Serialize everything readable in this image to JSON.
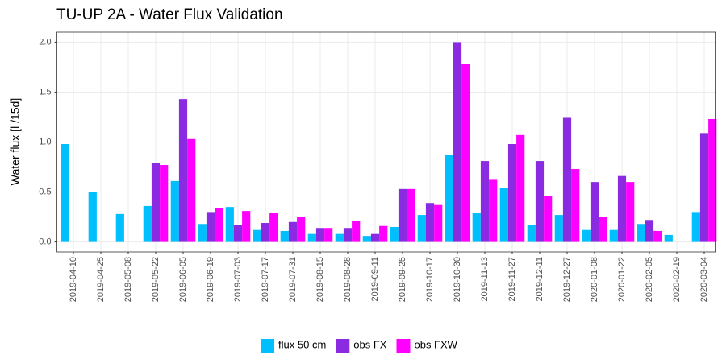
{
  "chart_data": {
    "type": "bar",
    "title": "TU-UP 2A - Water Flux Validation",
    "y_label": "Water flux [l /15d]",
    "categories": [
      "2019-04-10",
      "2019-04-25",
      "2019-05-08",
      "2019-05-22",
      "2019-06-05",
      "2019-06-19",
      "2019-07-03",
      "2019-07-17",
      "2019-07-31",
      "2019-08-15",
      "2019-08-28",
      "2019-09-11",
      "2019-09-25",
      "2019-10-17",
      "2019-10-30",
      "2019-11-13",
      "2019-11-27",
      "2019-12-11",
      "2019-12-27",
      "2020-01-08",
      "2020-01-22",
      "2020-02-05",
      "2020-02-19",
      "2020-03-04"
    ],
    "series": [
      {
        "name": "flux 50 cm",
        "color": "#00bfff",
        "values": [
          0.98,
          0.5,
          0.28,
          0.36,
          0.61,
          0.18,
          0.35,
          0.12,
          0.11,
          0.08,
          0.08,
          0.06,
          0.15,
          0.27,
          0.87,
          0.29,
          0.54,
          0.17,
          0.27,
          0.12,
          0.12,
          0.18,
          0.07,
          0.3
        ]
      },
      {
        "name": "obs FX",
        "color": "#8a2be2",
        "values": [
          null,
          null,
          null,
          0.79,
          1.43,
          0.3,
          0.17,
          0.19,
          0.2,
          0.14,
          0.14,
          0.08,
          0.53,
          0.39,
          2.0,
          0.81,
          0.98,
          0.81,
          1.25,
          0.6,
          0.66,
          0.22,
          null,
          1.09
        ]
      },
      {
        "name": "obs FXW",
        "color": "#ff00ff",
        "values": [
          null,
          null,
          null,
          0.77,
          1.03,
          0.34,
          0.31,
          0.29,
          0.25,
          0.14,
          0.21,
          0.16,
          0.53,
          0.37,
          1.78,
          0.63,
          1.07,
          0.46,
          0.73,
          0.25,
          0.6,
          0.11,
          null,
          1.23
        ]
      }
    ],
    "ylim": [
      -0.1,
      2.1
    ],
    "yticks": [
      {
        "value": 0,
        "label": "0.0"
      },
      {
        "value": 0.5,
        "label": "0.5"
      },
      {
        "value": 1,
        "label": "1.0"
      },
      {
        "value": 1.5,
        "label": "1.5"
      },
      {
        "value": 2,
        "label": "2.0"
      }
    ],
    "grid": true,
    "legend": "bottom"
  }
}
